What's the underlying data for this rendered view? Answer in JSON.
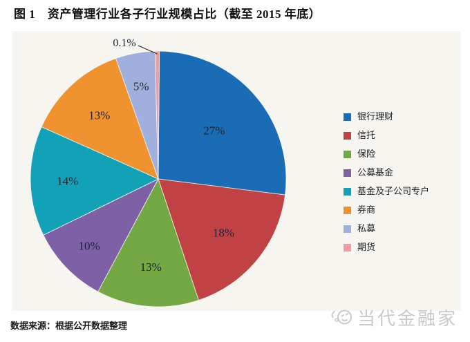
{
  "figure": {
    "title": "图 1　资产管理行业各子行业规模占比（截至 2015 年底）",
    "source_note": "数据来源：根据公开数据整理"
  },
  "watermark": {
    "name": "当代金融家",
    "icon": "smiley-swoosh-logo-icon"
  },
  "chart_data": {
    "type": "pie",
    "title": "资产管理行业各子行业规模占比（截至 2015 年底）",
    "unit": "%",
    "direction": "clockwise",
    "start_angle_deg": 0.5,
    "legend_position": "right",
    "slices": [
      {
        "label": "银行理财",
        "value_pct": 27,
        "data_label": "27%",
        "color": "#1a6cb5"
      },
      {
        "label": "信托",
        "value_pct": 18,
        "data_label": "18%",
        "color": "#c04244"
      },
      {
        "label": "保险",
        "value_pct": 13,
        "data_label": "13%",
        "color": "#73a845"
      },
      {
        "label": "公募基金",
        "value_pct": 10,
        "data_label": "10%",
        "color": "#7e60a6"
      },
      {
        "label": "基金及子公司专户",
        "value_pct": 14,
        "data_label": "14%",
        "color": "#12a2b7"
      },
      {
        "label": "券商",
        "value_pct": 13,
        "data_label": "13%",
        "color": "#f0922f"
      },
      {
        "label": "私募",
        "value_pct": 5,
        "data_label": "5%",
        "color": "#9fb0de"
      },
      {
        "label": "期货",
        "value_pct": 0.1,
        "data_label": "0.1%",
        "color": "#ef9da4"
      }
    ]
  },
  "colors": {
    "panel_bg": "#f7f5f0",
    "data_label_text": "#1b2531",
    "leader_line": "#222222",
    "watermark": "#c9c9c9"
  }
}
